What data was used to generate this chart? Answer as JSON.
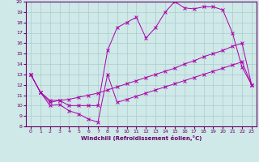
{
  "xlabel": "Windchill (Refroidissement éolien,°C)",
  "xlim": [
    -0.5,
    23.5
  ],
  "ylim": [
    8,
    20
  ],
  "xticks": [
    0,
    1,
    2,
    3,
    4,
    5,
    6,
    7,
    8,
    9,
    10,
    11,
    12,
    13,
    14,
    15,
    16,
    17,
    18,
    19,
    20,
    21,
    22,
    23
  ],
  "yticks": [
    8,
    9,
    10,
    11,
    12,
    13,
    14,
    15,
    16,
    17,
    18,
    19,
    20
  ],
  "background_color": "#cfe8e8",
  "grid_color": "#aacccc",
  "line_color": "#aa00aa",
  "s1_x": [
    0,
    1,
    2,
    3,
    4,
    5,
    6,
    7,
    8,
    9,
    10,
    11,
    12,
    13,
    14,
    15,
    16,
    17,
    18,
    19,
    20,
    21,
    22,
    23
  ],
  "s1_y": [
    13,
    11.3,
    10.0,
    10.1,
    9.5,
    9.2,
    8.7,
    8.4,
    13.0,
    10.3,
    10.6,
    10.9,
    11.2,
    11.5,
    11.8,
    12.1,
    12.4,
    12.7,
    13.0,
    13.3,
    13.6,
    13.9,
    14.2,
    12.0
  ],
  "s2_x": [
    0,
    1,
    2,
    3,
    4,
    5,
    6,
    7,
    8,
    9,
    10,
    11,
    12,
    13,
    14,
    15,
    16,
    17,
    18,
    19,
    20,
    21,
    22,
    23
  ],
  "s2_y": [
    13,
    11.3,
    10.3,
    10.5,
    10.6,
    10.8,
    11.0,
    11.2,
    11.5,
    11.8,
    12.1,
    12.4,
    12.7,
    13.0,
    13.3,
    13.6,
    14.0,
    14.3,
    14.7,
    15.0,
    15.3,
    15.7,
    16.0,
    12.0
  ],
  "s3_x": [
    0,
    1,
    2,
    3,
    4,
    5,
    6,
    7,
    8,
    9,
    10,
    11,
    12,
    13,
    14,
    15,
    16,
    17,
    18,
    19,
    20,
    21,
    22,
    23
  ],
  "s3_y": [
    13,
    11.3,
    10.5,
    10.5,
    10.0,
    10.0,
    10.0,
    10.0,
    15.3,
    17.5,
    18.0,
    18.5,
    16.5,
    17.5,
    19.0,
    20.0,
    19.4,
    19.3,
    19.5,
    19.5,
    19.2,
    17.0,
    13.7,
    12.0
  ]
}
